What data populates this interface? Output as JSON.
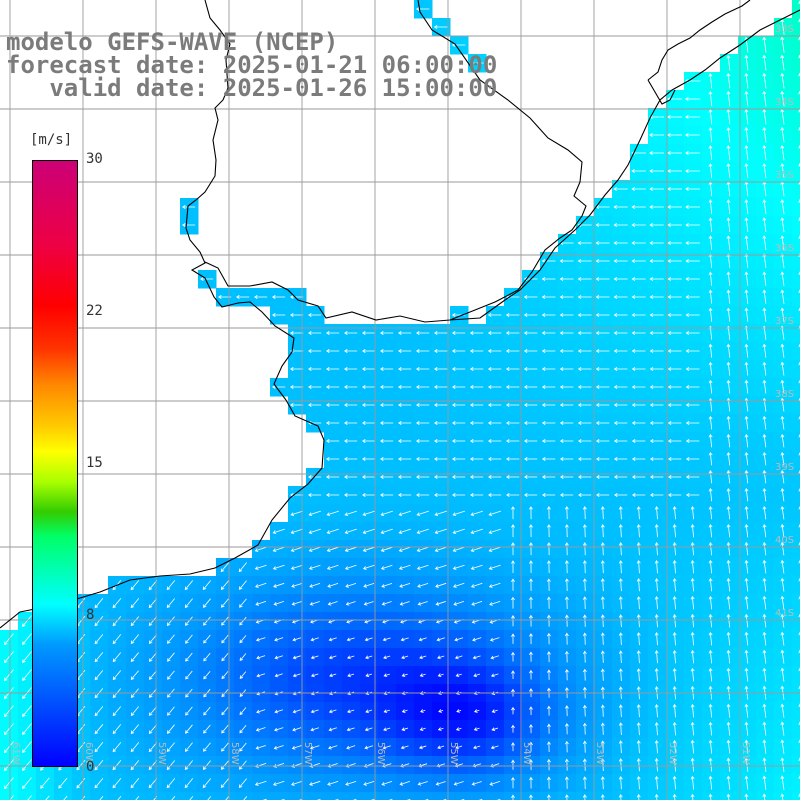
{
  "title": {
    "line1": "modelo GEFS-WAVE (NCEP)",
    "line2": "forecast date: 2025-01-21 06:00:00",
    "line3": "   valid date: 2025-01-26 15:00:00"
  },
  "colorbar": {
    "unit": "[m/s]",
    "ticks": [
      "30",
      "22",
      "15",
      "8",
      "0"
    ],
    "tick_values": [
      30,
      22,
      15,
      8,
      0
    ],
    "colors": [
      "#0000ff",
      "#0099ff",
      "#00ffff",
      "#00ff66",
      "#33cc00",
      "#ffff00",
      "#ff8800",
      "#ff0000",
      "#cc0077"
    ]
  },
  "map": {
    "region": "South Atlantic / Rio de la Plata",
    "grid_lines": true,
    "land_color": "#ffffff",
    "coast_color": "#000000",
    "grid_color": "#9a9a9a",
    "arrow_color": "#ffffff",
    "lat_labels": [
      "33S",
      "34S",
      "35S",
      "36S",
      "37S",
      "38S",
      "39S",
      "40S",
      "41S"
    ],
    "lon_labels": [
      "61W",
      "60W",
      "59W",
      "58W",
      "57W",
      "56W",
      "55W",
      "54W",
      "53W",
      "52W",
      "51W"
    ]
  }
}
